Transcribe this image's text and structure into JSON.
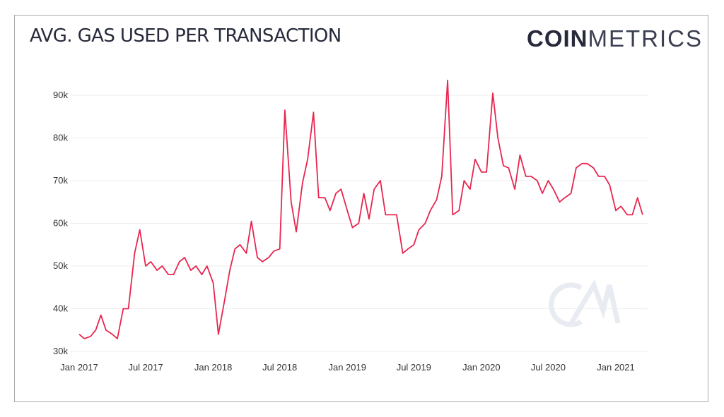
{
  "title": "AVG. GAS USED PER TRANSACTION",
  "logo": {
    "bold": "COIN",
    "light": "METRICS",
    "watermark": "CM"
  },
  "colors": {
    "line": "#e8264f",
    "grid": "#eeeeee",
    "text": "#262a3b",
    "watermark": "#e8ebf2"
  },
  "chart_data": {
    "type": "line",
    "title": "AVG. GAS USED PER TRANSACTION",
    "xlabel": "",
    "ylabel": "",
    "ylim": [
      30000,
      90000
    ],
    "xlim": [
      "2017-01-01",
      "2021-03-15"
    ],
    "grid": true,
    "y_ticks": [
      {
        "v": 30000,
        "label": "30k"
      },
      {
        "v": 40000,
        "label": "40k"
      },
      {
        "v": 50000,
        "label": "50k"
      },
      {
        "v": 60000,
        "label": "60k"
      },
      {
        "v": 70000,
        "label": "70k"
      },
      {
        "v": 80000,
        "label": "80k"
      },
      {
        "v": 90000,
        "label": "90k"
      }
    ],
    "x_ticks": [
      {
        "d": "2017-01-01",
        "label": "Jan 2017"
      },
      {
        "d": "2017-07-01",
        "label": "Jul 2017"
      },
      {
        "d": "2018-01-01",
        "label": "Jan 2018"
      },
      {
        "d": "2018-07-01",
        "label": "Jul 2018"
      },
      {
        "d": "2019-01-01",
        "label": "Jan 2019"
      },
      {
        "d": "2019-07-01",
        "label": "Jul 2019"
      },
      {
        "d": "2020-01-01",
        "label": "Jan 2020"
      },
      {
        "d": "2020-07-01",
        "label": "Jul 2020"
      },
      {
        "d": "2021-01-01",
        "label": "Jan 2021"
      }
    ],
    "values_k": [
      34,
      33,
      33.5,
      35,
      38.5,
      35,
      34,
      33,
      40,
      40,
      53,
      58.5,
      50,
      51,
      49,
      50,
      48,
      48,
      51,
      52,
      49,
      50,
      48,
      50,
      46,
      34,
      42,
      49,
      54,
      55,
      53,
      60.5,
      52,
      51,
      52,
      53.5,
      54,
      86.5,
      65,
      58,
      69.5,
      75,
      86,
      66,
      66,
      63,
      67,
      68,
      63,
      59,
      60,
      67,
      61,
      68,
      70,
      62,
      62,
      62,
      53,
      54,
      55,
      58.5,
      60,
      63,
      65.5,
      71,
      93.5,
      62,
      63,
      70,
      68,
      75,
      72,
      72,
      90.5,
      80,
      73.5,
      73,
      68,
      76,
      71,
      71,
      70,
      67,
      70,
      68,
      65,
      66,
      67,
      73,
      74,
      74,
      73,
      71,
      71,
      69,
      63,
      64,
      62,
      62,
      66,
      62
    ]
  }
}
